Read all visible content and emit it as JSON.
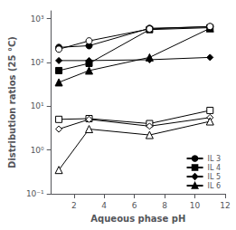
{
  "chart_data": {
    "type": "line",
    "xlabel": "Aqueous phase pH",
    "ylabel": "Distribution ratios (25 °C)",
    "xlim": [
      0.5,
      12
    ],
    "xticks": [
      2,
      4,
      6,
      8,
      10,
      12
    ],
    "ylim": [
      0.1,
      1500
    ],
    "yticks": [
      {
        "value": 0.1,
        "label": "10⁻¹"
      },
      {
        "value": 1,
        "label": "10⁰"
      },
      {
        "value": 10,
        "label": "10¹"
      },
      {
        "value": 100,
        "label": "10²"
      },
      {
        "value": 1000,
        "label": "10³"
      }
    ],
    "log": "y",
    "grid": false,
    "legend": "lower right",
    "color": "black",
    "x": [
      1,
      3,
      7,
      11
    ],
    "series": [
      {
        "name": "IL 3",
        "values": [
          220,
          240,
          600,
          650
        ],
        "marker": "circle"
      },
      {
        "name": "IL 4",
        "values": [
          65,
          95,
          560,
          620
        ],
        "marker": "square"
      },
      {
        "name": "IL 5",
        "values": [
          110,
          110,
          115,
          130
        ],
        "marker": "diamond"
      },
      {
        "name": "IL 6",
        "values": [
          35,
          65,
          130,
          600
        ],
        "marker": "triangle"
      },
      {
        "values": [
          200,
          310,
          580,
          660
        ],
        "marker": "hollow-circle"
      },
      {
        "values": [
          5.0,
          5.2,
          4.0,
          8.0
        ],
        "marker": "hollow-square"
      },
      {
        "values": [
          3.0,
          5.0,
          3.5,
          5.5
        ],
        "marker": "hollow-diamond"
      },
      {
        "values": [
          0.35,
          3.0,
          2.2,
          4.5
        ],
        "marker": "hollow-triangle"
      }
    ]
  }
}
